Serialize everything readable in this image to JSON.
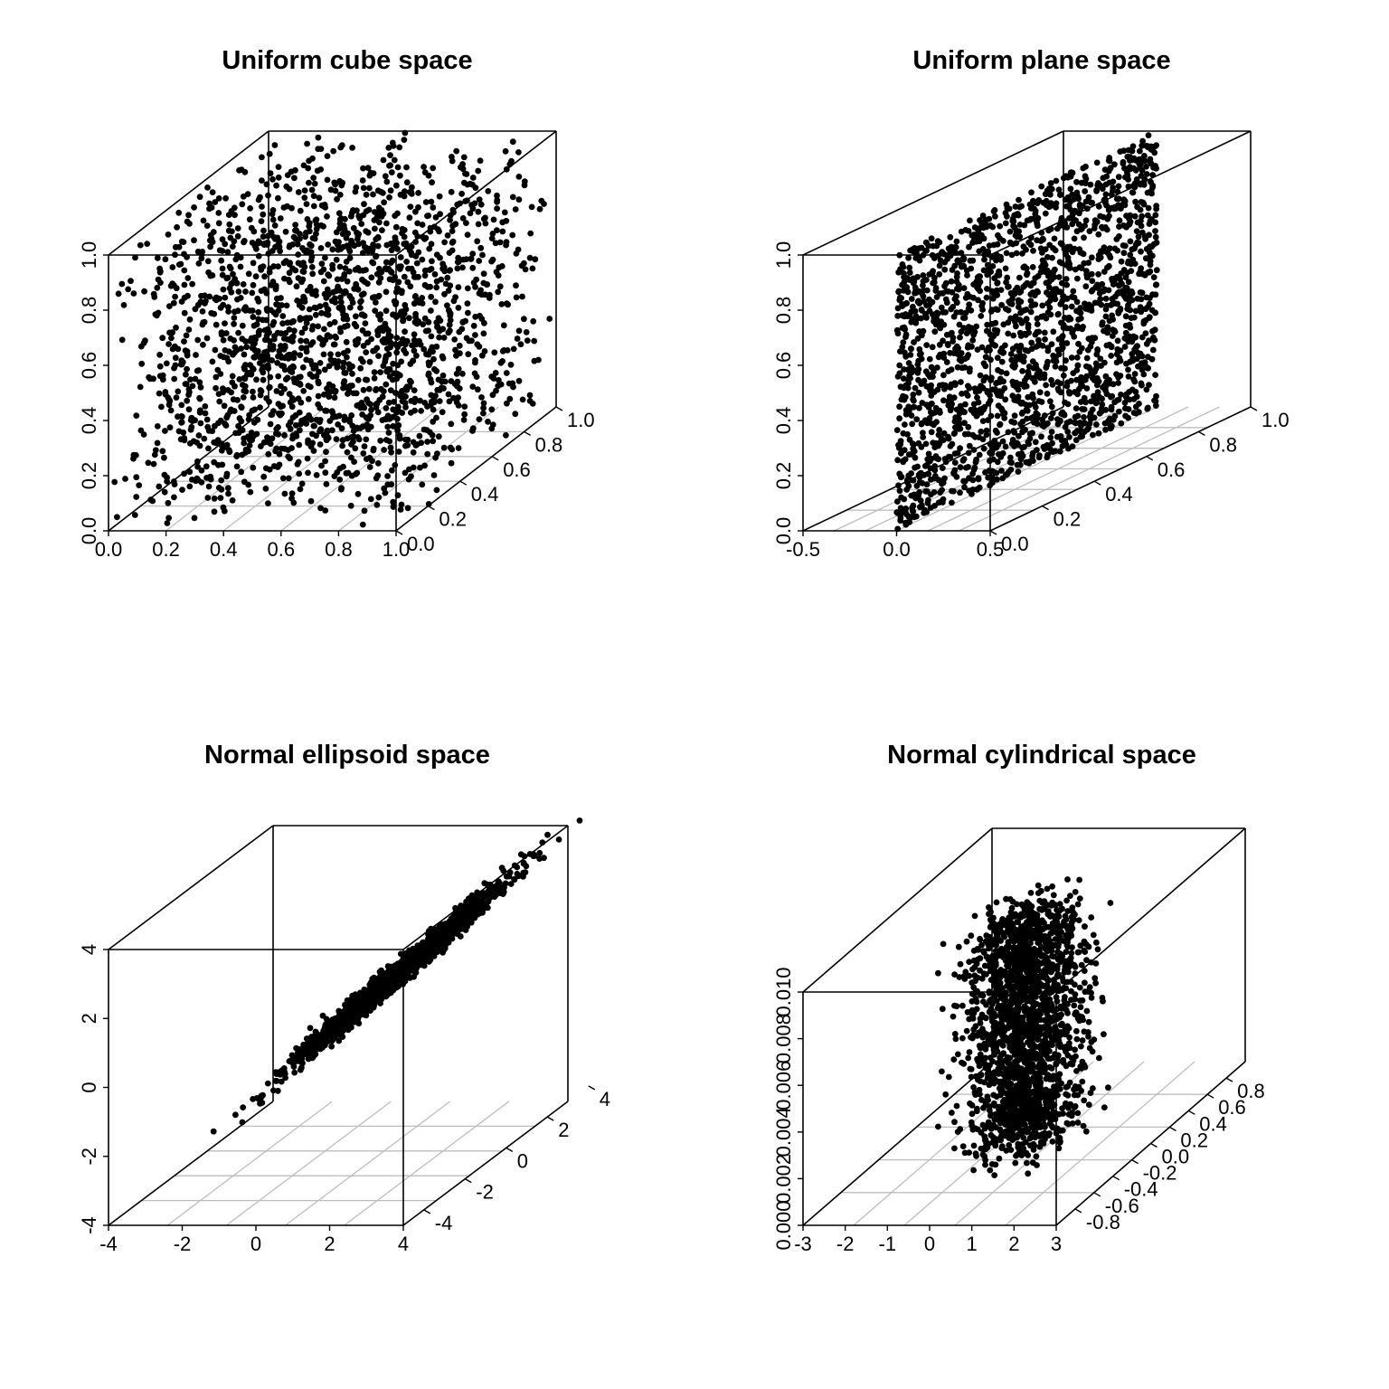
{
  "chart_data": [
    {
      "type": "scatter",
      "projection": "3d",
      "title": "Uniform cube space",
      "n_points": 2000,
      "distribution": "uniform",
      "x_range": [
        0,
        1
      ],
      "y_range": [
        0,
        1
      ],
      "z_range": [
        0,
        1
      ],
      "x_ticks": [
        "0.0",
        "0.2",
        "0.4",
        "0.6",
        "0.8",
        "1.0"
      ],
      "y_ticks": [
        "0.0",
        "0.2",
        "0.4",
        "0.6",
        "0.8",
        "1.0"
      ],
      "z_ticks": [
        "0.0",
        "0.2",
        "0.4",
        "0.6",
        "0.8",
        "1.0"
      ],
      "grid": "floor",
      "point_color": "#000000"
    },
    {
      "type": "scatter",
      "projection": "3d",
      "title": "Uniform plane space",
      "n_points": 2000,
      "distribution": "uniform on the plane x = 0",
      "x_range": [
        -0.5,
        0.5
      ],
      "y_range": [
        0,
        1
      ],
      "z_range": [
        0,
        1
      ],
      "x_ticks": [
        "-0.5",
        "0.0",
        "0.5"
      ],
      "y_ticks": [
        "0.0",
        "0.2",
        "0.4",
        "0.6",
        "0.8",
        "1.0"
      ],
      "z_ticks": [
        "0.0",
        "0.2",
        "0.4",
        "0.6",
        "0.8",
        "1.0"
      ],
      "grid": "floor",
      "point_color": "#000000"
    },
    {
      "type": "scatter",
      "projection": "3d",
      "title": "Normal ellipsoid space",
      "n_points": 2000,
      "distribution": "multivariate normal, positively correlated, mean (1, 0, 1)",
      "x_range": [
        -4,
        4
      ],
      "y_range": [
        -5,
        3
      ],
      "z_range": [
        -4,
        4
      ],
      "x_ticks": [
        "-4",
        "-2",
        "0",
        "2",
        "4"
      ],
      "y_ticks": [
        "-4",
        "-2",
        "0",
        "2",
        "4"
      ],
      "z_ticks": [
        "-4",
        "-2",
        "0",
        "2",
        "4"
      ],
      "grid": "floor",
      "point_color": "#000000"
    },
    {
      "type": "scatter",
      "projection": "3d",
      "title": "Normal cylindrical space",
      "n_points": 2000,
      "distribution": "normal in x and y, uniform in z",
      "x_range": [
        -3,
        3
      ],
      "y_range": [
        -1,
        1
      ],
      "z_range": [
        0,
        0.01
      ],
      "x_ticks": [
        "-3",
        "-2",
        "-1",
        "0",
        "1",
        "2",
        "3"
      ],
      "y_ticks": [
        "-0.8",
        "-0.6",
        "-0.4",
        "-0.2",
        "0.0",
        "0.2",
        "0.4",
        "0.6",
        "0.8"
      ],
      "z_ticks": [
        "0.000",
        "0.002",
        "0.004",
        "0.006",
        "0.008",
        "0.010"
      ],
      "grid": "floor",
      "point_color": "#000000"
    }
  ]
}
